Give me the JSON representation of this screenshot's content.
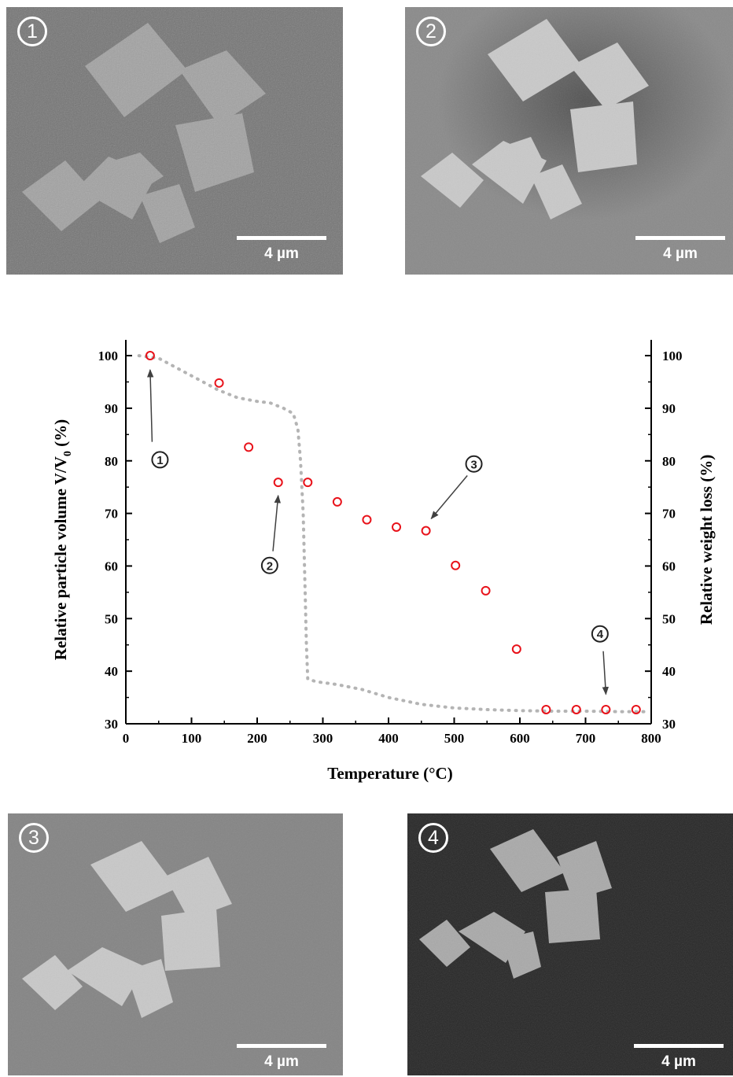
{
  "panels": [
    {
      "id": "1",
      "marker": "1",
      "scale_label": "4 µm"
    },
    {
      "id": "2",
      "marker": "2",
      "scale_label": "4 µm"
    },
    {
      "id": "3",
      "marker": "3",
      "scale_label": "4 µm"
    },
    {
      "id": "4",
      "marker": "4",
      "scale_label": "4 µm"
    }
  ],
  "colors": {
    "points": "#e8121a",
    "tga_curve": "#b4b4b4",
    "axes": "#000000",
    "annotation_arrow": "#404040"
  },
  "chart_data": {
    "type": "scatter",
    "title": "",
    "xlabel": "Temperature (°C)",
    "ylabel_left": "Relative particle volume V/V",
    "ylabel_left_subscript": "0",
    "ylabel_left_suffix": " (%)",
    "ylabel_right": "Relative weight loss (%)",
    "xlim": [
      0,
      800
    ],
    "ylim": [
      30,
      103
    ],
    "x_ticks": [
      0,
      100,
      200,
      300,
      400,
      500,
      600,
      700,
      800
    ],
    "y_ticks": [
      30,
      40,
      50,
      60,
      70,
      80,
      90,
      100
    ],
    "grid": false,
    "legend": "none",
    "series": [
      {
        "kind": "points",
        "x": [
          37,
          142,
          187,
          232,
          277,
          322,
          367,
          412,
          457,
          502,
          548,
          595,
          640,
          686,
          731,
          777
        ],
        "y": [
          100,
          94.8,
          82.6,
          75.9,
          75.9,
          72.2,
          68.8,
          67.4,
          66.7,
          60.1,
          55.3,
          44.2,
          32.7,
          32.7,
          32.7,
          32.7
        ]
      },
      {
        "kind": "dotted-curve",
        "x": [
          20,
          50,
          80,
          110,
          140,
          170,
          200,
          220,
          240,
          255,
          262,
          266,
          270,
          273,
          275,
          277,
          290,
          320,
          360,
          400,
          450,
          500,
          550,
          600,
          650,
          700,
          750,
          790
        ],
        "y": [
          100,
          99.5,
          97.5,
          95.5,
          93.5,
          92,
          91.3,
          91,
          90,
          89,
          86,
          80,
          70,
          55,
          45,
          38.5,
          38,
          37.5,
          36.5,
          35,
          33.7,
          33,
          32.7,
          32.5,
          32.4,
          32.4,
          32.3,
          32.3
        ]
      }
    ],
    "annotations": [
      {
        "label": "1",
        "text_x": 52,
        "text_y": 80.2,
        "arrow_from": [
          40,
          83.6
        ],
        "arrow_to": [
          37,
          97.3
        ]
      },
      {
        "label": "2",
        "text_x": 219,
        "text_y": 60.1,
        "arrow_from": [
          224,
          62.8
        ],
        "arrow_to": [
          232,
          73.4
        ]
      },
      {
        "label": "3",
        "text_x": 530,
        "text_y": 79.4,
        "arrow_from": [
          520,
          77.2
        ],
        "arrow_to": [
          465,
          69
        ]
      },
      {
        "label": "4",
        "text_x": 722,
        "text_y": 47.1,
        "arrow_from": [
          727,
          43.8
        ],
        "arrow_to": [
          731,
          35.6
        ]
      }
    ]
  }
}
